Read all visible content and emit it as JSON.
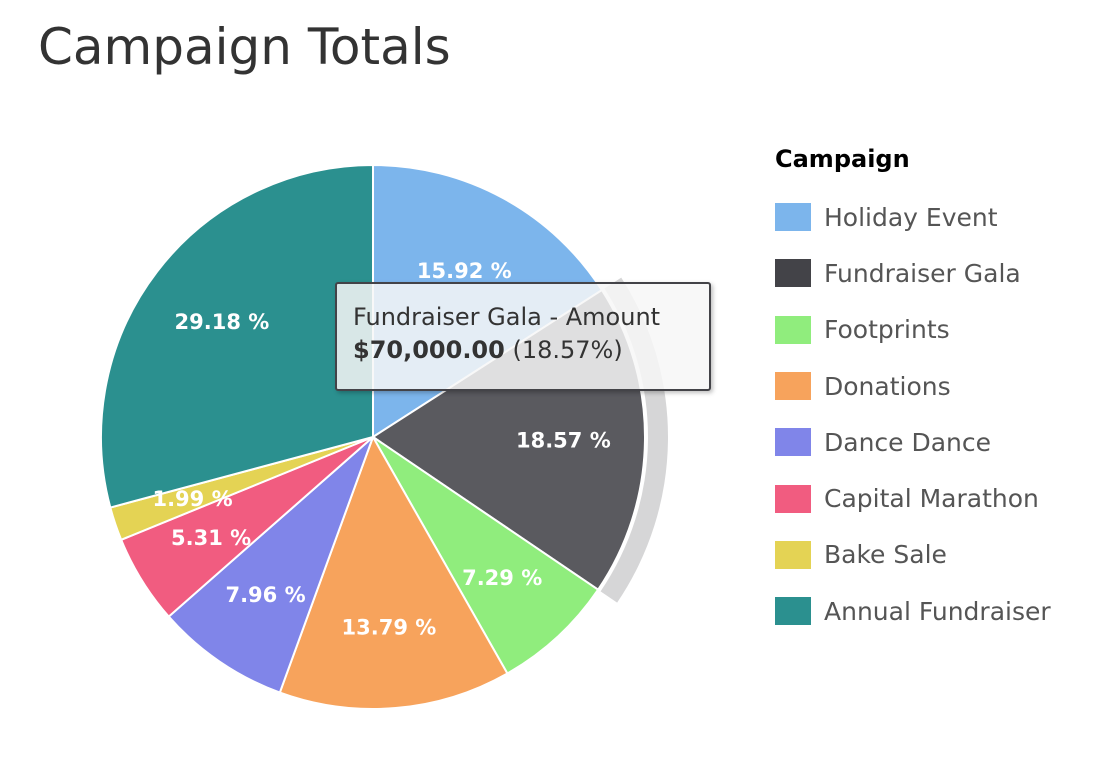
{
  "chart_data": {
    "type": "pie",
    "title": "Campaign Totals",
    "legend_title": "Campaign",
    "legend_placement": "right",
    "categories": [
      "Holiday Event",
      "Fundraiser Gala",
      "Footprints",
      "Donations",
      "Dance Dance",
      "Capital Marathon",
      "Bake Sale",
      "Annual Fundraiser"
    ],
    "values": [
      15.92,
      18.57,
      7.29,
      13.79,
      7.96,
      5.31,
      1.99,
      29.18
    ],
    "labels": [
      "15.92 %",
      "18.57 %",
      "7.29 %",
      "13.79 %",
      "7.96 %",
      "5.31 %",
      "1.99 %",
      "29.18 %"
    ],
    "colors": [
      "#7cb5ec",
      "#434348",
      "#90ed7d",
      "#f7a35c",
      "#8085e9",
      "#f15c80",
      "#e4d354",
      "#2b908f"
    ],
    "hovered_index": 1,
    "hovered_color": "#5a5a5f",
    "tooltip": {
      "title": "Fundraiser Gala - Amount",
      "amount": "$70,000.00",
      "percent": "(18.57%)"
    }
  }
}
